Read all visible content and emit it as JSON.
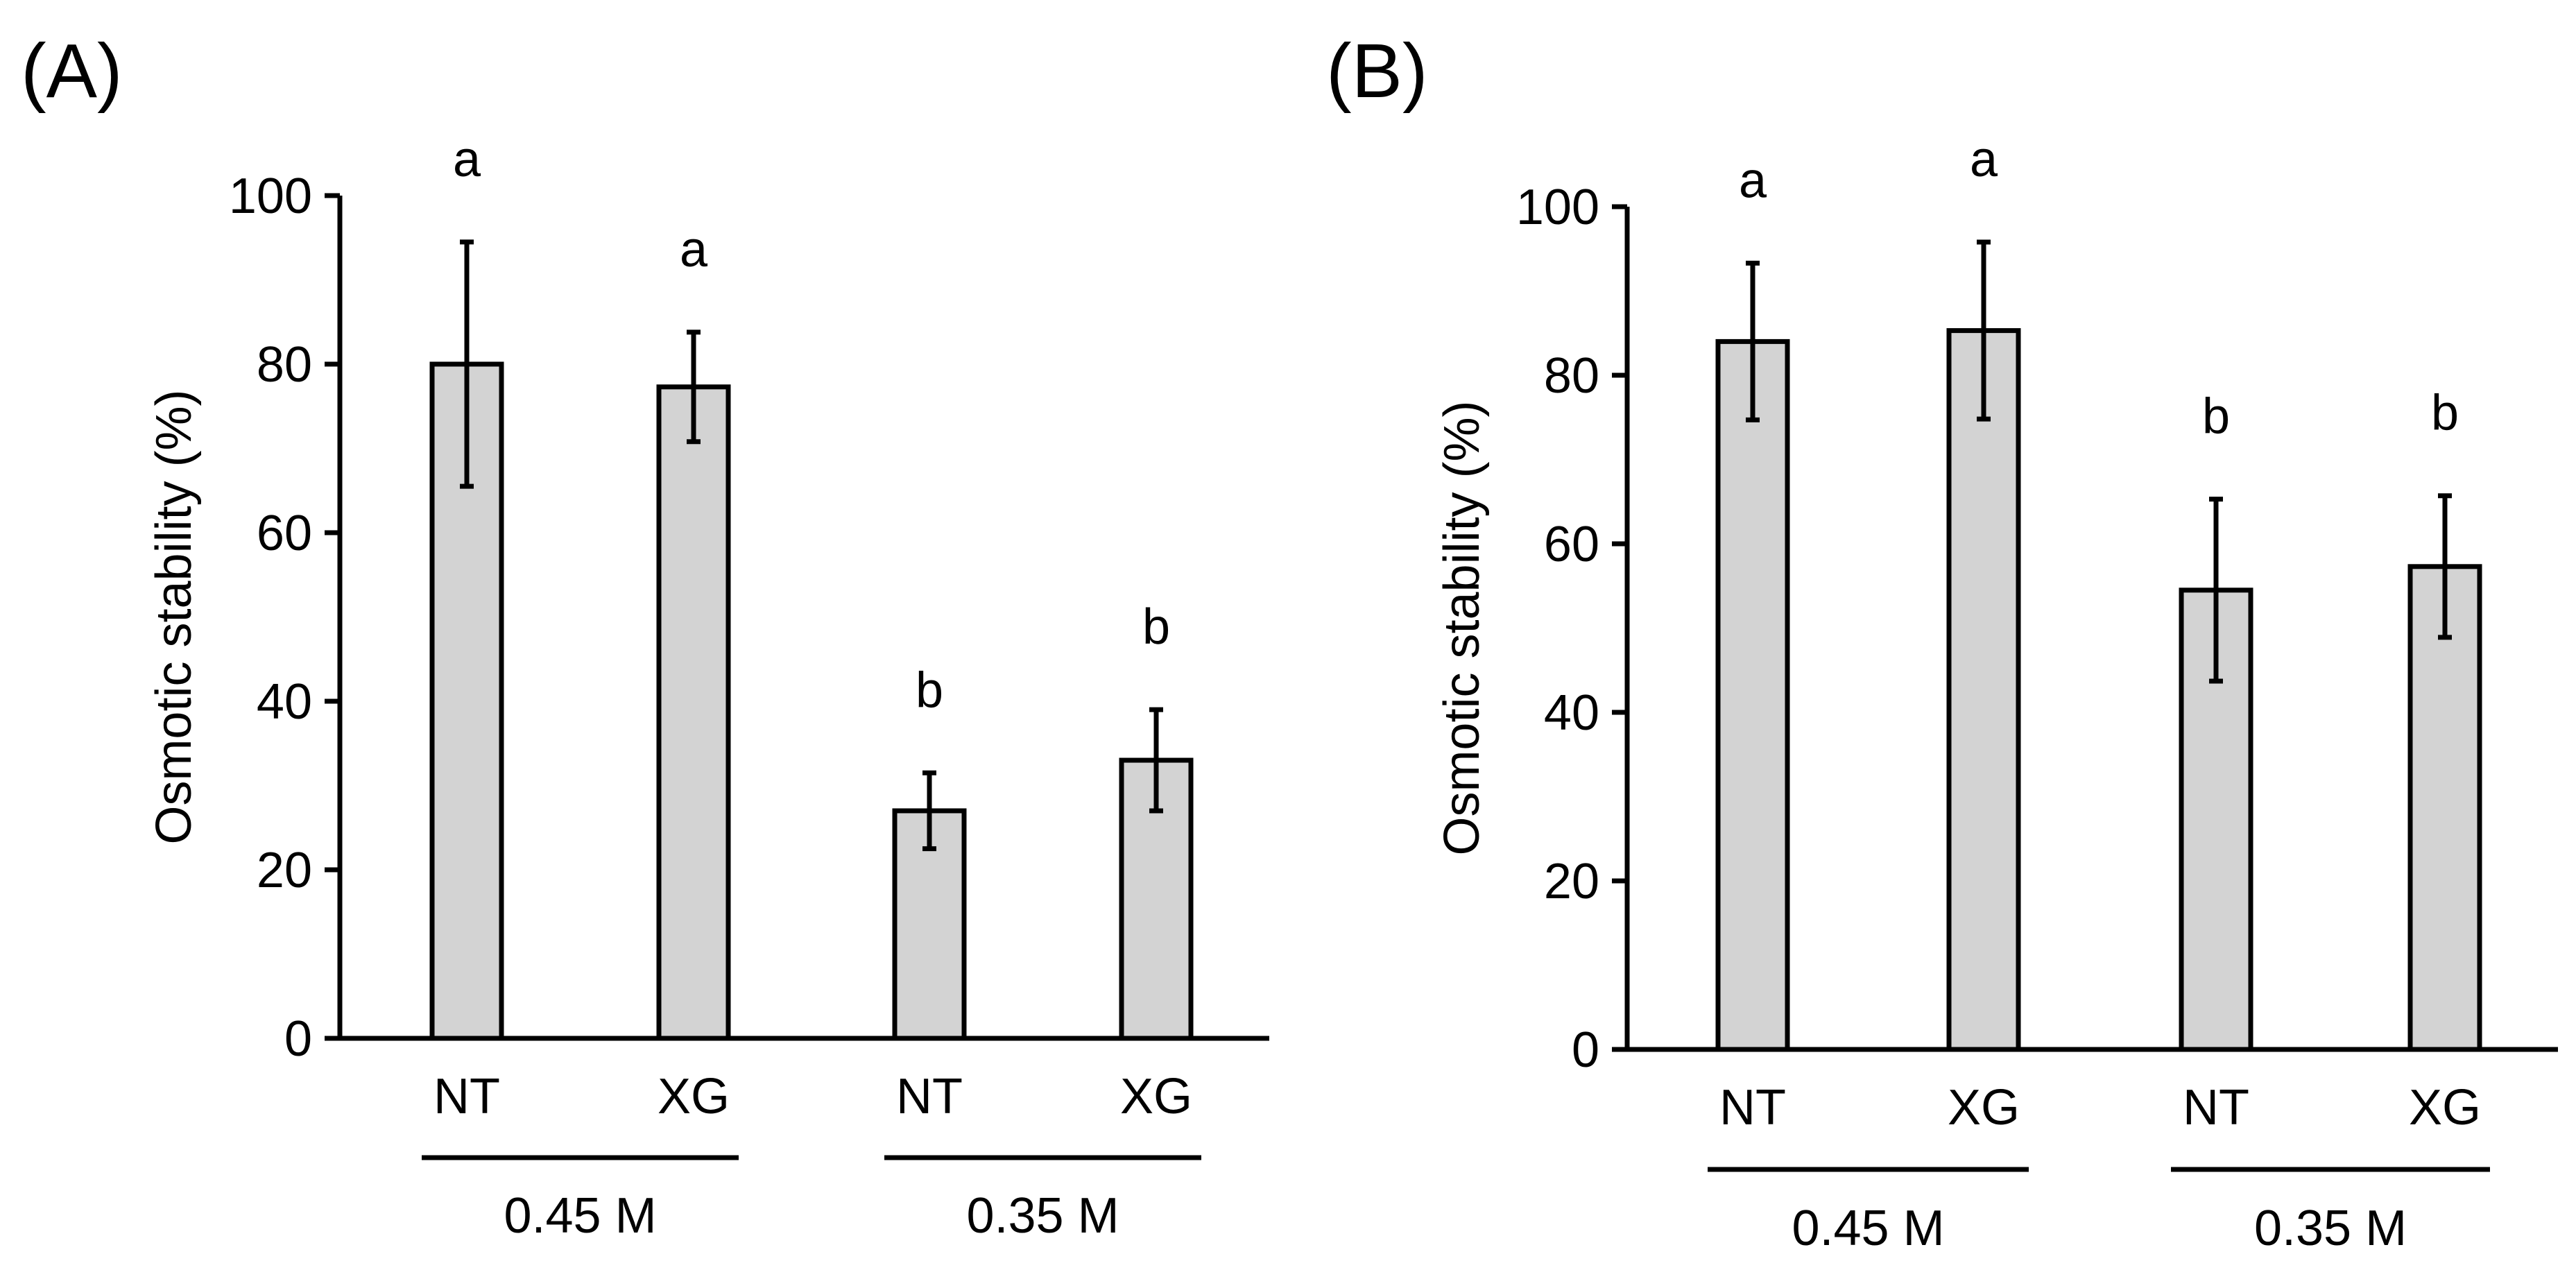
{
  "chart_data": [
    {
      "type": "bar",
      "panel_label": "(A)",
      "categories": [
        "NT",
        "XG",
        "NT",
        "XG"
      ],
      "groups": [
        {
          "label": "0.45 M",
          "categories": [
            0,
            1
          ]
        },
        {
          "label": "0.35 M",
          "categories": [
            2,
            3
          ]
        }
      ],
      "values": [
        80,
        77.3,
        27,
        33
      ],
      "errors": [
        14.5,
        6.5,
        4.5,
        6
      ],
      "significance_letters": [
        "a",
        "a",
        "b",
        "b"
      ],
      "ylabel": "Osmotic stability (%)",
      "ylim": [
        0,
        100
      ],
      "yticks": [
        "0",
        "20",
        "40",
        "60",
        "80",
        "100"
      ],
      "bar_color": "#d3d3d3",
      "grid": false
    },
    {
      "type": "bar",
      "panel_label": "(B)",
      "categories": [
        "NT",
        "XG",
        "NT",
        "XG"
      ],
      "groups": [
        {
          "label": "0.45 M",
          "categories": [
            0,
            1
          ]
        },
        {
          "label": "0.35 M",
          "categories": [
            2,
            3
          ]
        }
      ],
      "values": [
        84,
        85.3,
        54.5,
        57.3
      ],
      "errors": [
        9.3,
        10.5,
        10.8,
        8.4
      ],
      "significance_letters": [
        "a",
        "a",
        "b",
        "b"
      ],
      "ylabel": "Osmotic stability (%)",
      "ylim": [
        0,
        100
      ],
      "yticks": [
        "0",
        "20",
        "40",
        "60",
        "80",
        "100"
      ],
      "bar_color": "#d3d3d3",
      "grid": false
    }
  ]
}
